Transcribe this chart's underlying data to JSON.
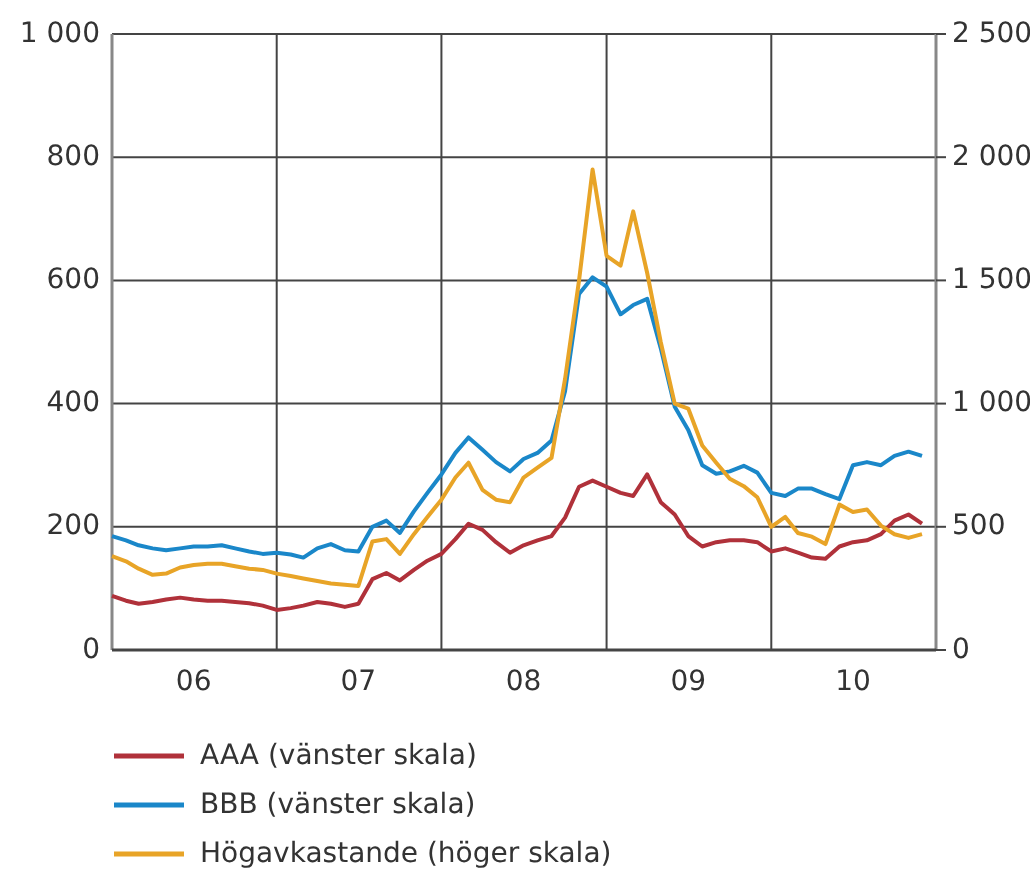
{
  "chart_data": {
    "type": "line",
    "x": [
      "2006-01",
      "2006-02",
      "2006-03",
      "2006-04",
      "2006-05",
      "2006-06",
      "2006-07",
      "2006-08",
      "2006-09",
      "2006-10",
      "2006-11",
      "2006-12",
      "2007-01",
      "2007-02",
      "2007-03",
      "2007-04",
      "2007-05",
      "2007-06",
      "2007-07",
      "2007-08",
      "2007-09",
      "2007-10",
      "2007-11",
      "2007-12",
      "2008-01",
      "2008-02",
      "2008-03",
      "2008-04",
      "2008-05",
      "2008-06",
      "2008-07",
      "2008-08",
      "2008-09",
      "2008-10",
      "2008-11",
      "2008-12",
      "2009-01",
      "2009-02",
      "2009-03",
      "2009-04",
      "2009-05",
      "2009-06",
      "2009-07",
      "2009-08",
      "2009-09",
      "2009-10",
      "2009-11",
      "2009-12",
      "2010-01",
      "2010-02",
      "2010-03",
      "2010-04",
      "2010-05",
      "2010-06",
      "2010-07",
      "2010-08",
      "2010-09",
      "2010-10",
      "2010-11",
      "2010-12"
    ],
    "series": [
      {
        "name": "AAA (vänster skala)",
        "color": "#b0313a",
        "values": [
          88,
          80,
          75,
          78,
          82,
          85,
          82,
          80,
          80,
          78,
          76,
          72,
          65,
          68,
          72,
          78,
          75,
          70,
          75,
          115,
          125,
          113,
          130,
          145,
          156,
          180,
          205,
          195,
          175,
          158,
          170,
          178,
          185,
          215,
          265,
          275,
          265,
          255,
          250,
          285,
          240,
          220,
          185,
          168,
          175,
          178,
          178,
          175,
          160,
          165,
          158,
          150,
          148,
          168,
          175,
          178,
          188,
          210,
          220,
          205
        ]
      },
      {
        "name": "BBB (vänster skala)",
        "color": "#1a87c9",
        "values": [
          185,
          178,
          170,
          165,
          162,
          165,
          168,
          168,
          170,
          165,
          160,
          156,
          158,
          155,
          150,
          165,
          172,
          162,
          160,
          200,
          210,
          190,
          225,
          255,
          285,
          320,
          345,
          325,
          305,
          290,
          310,
          320,
          340,
          420,
          578,
          605,
          590,
          545,
          560,
          570,
          490,
          395,
          357,
          300,
          286,
          290,
          299,
          288,
          255,
          250,
          262,
          262,
          253,
          245,
          300,
          305,
          300,
          315,
          322,
          315
        ]
      },
      {
        "name": "Högavkastande (höger skala)",
        "color": "#e8a427",
        "axis": "y2",
        "values": [
          381,
          360,
          330,
          305,
          310,
          335,
          345,
          350,
          350,
          340,
          330,
          325,
          310,
          300,
          290,
          280,
          270,
          265,
          260,
          440,
          450,
          390,
          470,
          540,
          610,
          700,
          760,
          650,
          610,
          600,
          700,
          740,
          780,
          1100,
          1500,
          1950,
          1600,
          1560,
          1780,
          1530,
          1250,
          1000,
          980,
          830,
          760,
          695,
          665,
          620,
          500,
          540,
          475,
          460,
          430,
          590,
          560,
          570,
          505,
          470,
          455,
          470
        ]
      }
    ],
    "xlim": [
      "2006-01-01",
      "2011-01-01"
    ],
    "xticks": [
      {
        "value": "2006-07-01",
        "label": "06"
      },
      {
        "value": "2007-01-01",
        "label": null
      },
      {
        "value": "2007-07-01",
        "label": "07"
      },
      {
        "value": "2008-01-01",
        "label": null
      },
      {
        "value": "2008-07-01",
        "label": "08"
      },
      {
        "value": "2009-01-01",
        "label": null
      },
      {
        "value": "2009-07-01",
        "label": "09"
      },
      {
        "value": "2010-01-01",
        "label": null
      },
      {
        "value": "2010-07-01",
        "label": "10"
      }
    ],
    "ylim": [
      0,
      1000
    ],
    "yticks": [
      0,
      200,
      400,
      600,
      800,
      {
        "value": 1000,
        "label": "1 000"
      }
    ],
    "y2lim": [
      0,
      2500
    ],
    "y2ticks": [
      0,
      500,
      {
        "value": 1000,
        "label": "1 000"
      },
      {
        "value": 1500,
        "label": "1 500"
      },
      {
        "value": 2000,
        "label": "2 000"
      },
      {
        "value": 2500,
        "label": "2 500"
      }
    ],
    "grid": true,
    "legend": "bottom",
    "line_style": "solid",
    "marker": "none"
  }
}
